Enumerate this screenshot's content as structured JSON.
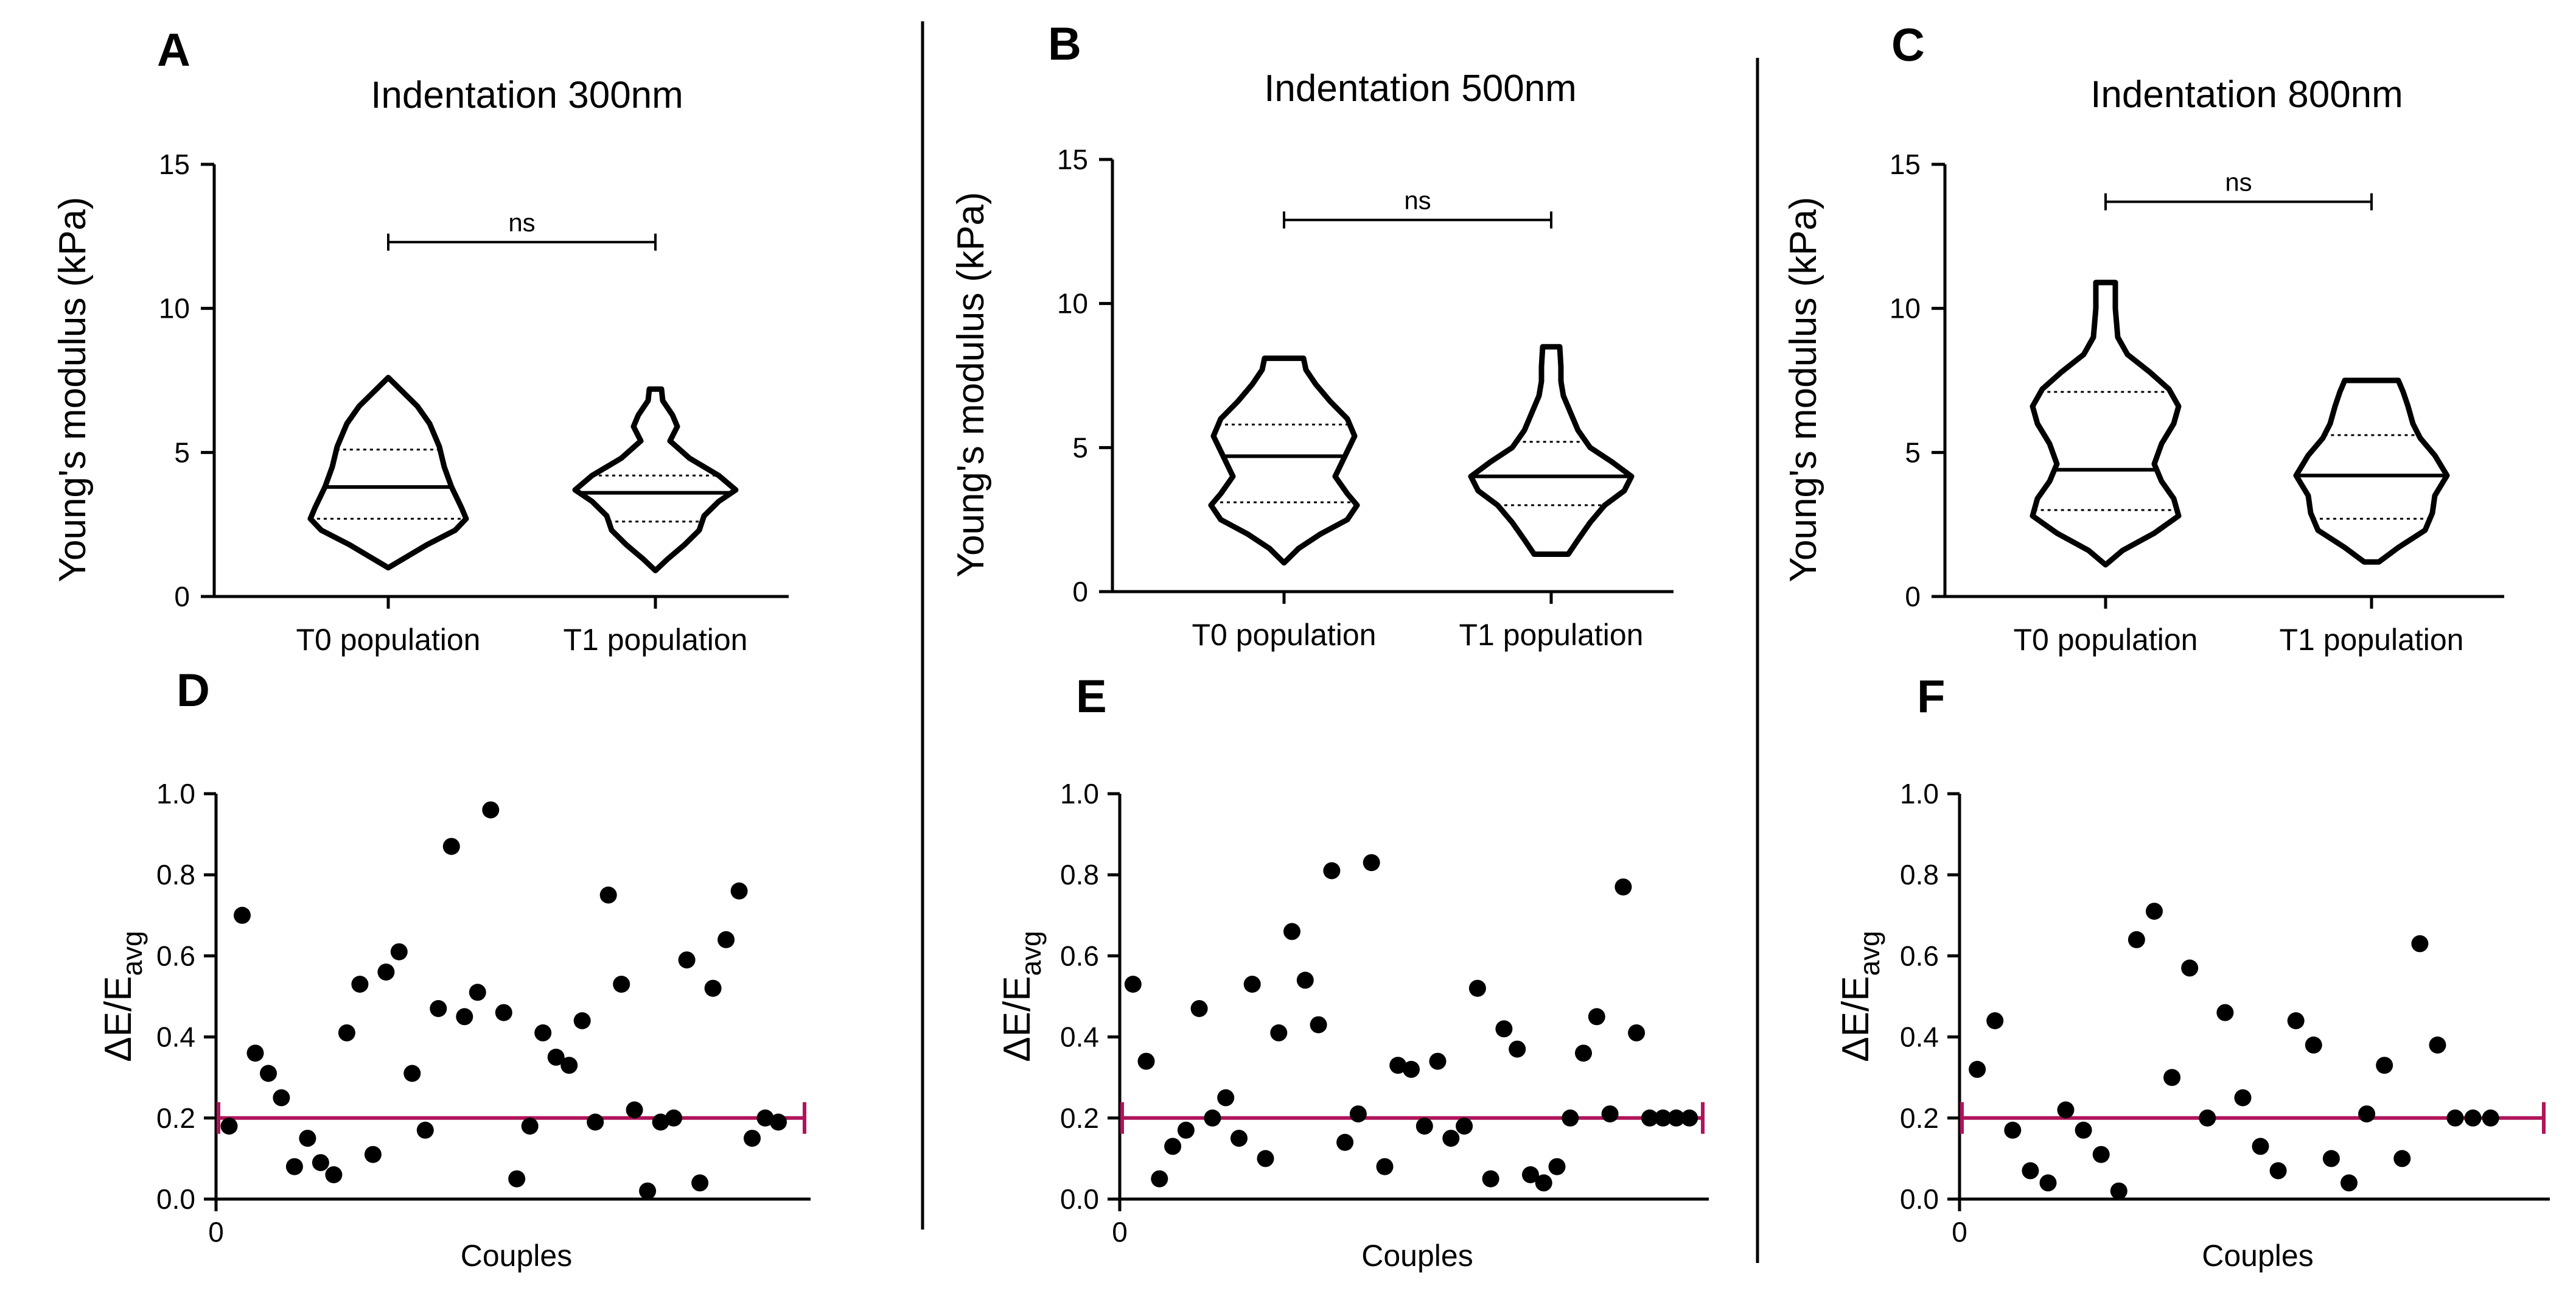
{
  "colors": {
    "threshold_line": "#b0155a",
    "ink": "#000000",
    "background": "#ffffff"
  },
  "chart_data": [
    {
      "panel": "A",
      "type": "violin",
      "title": "Indentation 300nm",
      "ylabel": "Young's modulus (kPa)",
      "ylim": [
        0,
        15
      ],
      "yticks": [
        "0",
        "5",
        "10",
        "15"
      ],
      "categories": [
        "T0 population",
        "T1 population"
      ],
      "significance": "ns",
      "bracket_y": 12.3,
      "series": [
        {
          "name": "T0 population",
          "min": 1.0,
          "max": 7.6,
          "q1": 2.7,
          "median": 3.8,
          "q3": 5.1,
          "profile": [
            [
              1.0,
              0
            ],
            [
              1.3,
              0.12
            ],
            [
              1.8,
              0.32
            ],
            [
              2.3,
              0.55
            ],
            [
              2.7,
              0.64
            ],
            [
              3.1,
              0.6
            ],
            [
              3.8,
              0.52
            ],
            [
              4.5,
              0.46
            ],
            [
              5.2,
              0.42
            ],
            [
              6.0,
              0.34
            ],
            [
              6.6,
              0.24
            ],
            [
              7.1,
              0.12
            ],
            [
              7.6,
              0
            ]
          ]
        },
        {
          "name": "T1 population",
          "min": 0.9,
          "max": 7.2,
          "q1": 2.6,
          "median": 3.6,
          "q3": 4.2,
          "profile": [
            [
              0.9,
              0
            ],
            [
              1.3,
              0.1
            ],
            [
              1.8,
              0.24
            ],
            [
              2.3,
              0.36
            ],
            [
              2.8,
              0.4
            ],
            [
              3.3,
              0.52
            ],
            [
              3.7,
              0.66
            ],
            [
              4.2,
              0.52
            ],
            [
              4.8,
              0.28
            ],
            [
              5.4,
              0.12
            ],
            [
              5.9,
              0.18
            ],
            [
              6.3,
              0.14
            ],
            [
              6.8,
              0.06
            ],
            [
              7.2,
              0.05
            ]
          ]
        }
      ]
    },
    {
      "panel": "B",
      "type": "violin",
      "title": "Indentation 500nm",
      "ylabel": "Young's modulus (kPa)",
      "ylim": [
        0,
        15
      ],
      "yticks": [
        "0",
        "5",
        "10",
        "15"
      ],
      "categories": [
        "T0 population",
        "T1 population"
      ],
      "significance": "ns",
      "bracket_y": 12.9,
      "series": [
        {
          "name": "T0 population",
          "min": 1.0,
          "max": 8.1,
          "q1": 3.1,
          "median": 4.7,
          "q3": 5.8,
          "profile": [
            [
              1.0,
              0
            ],
            [
              1.5,
              0.12
            ],
            [
              2.0,
              0.3
            ],
            [
              2.5,
              0.52
            ],
            [
              3.0,
              0.6
            ],
            [
              3.4,
              0.52
            ],
            [
              4.0,
              0.42
            ],
            [
              4.7,
              0.5
            ],
            [
              5.4,
              0.58
            ],
            [
              6.0,
              0.52
            ],
            [
              6.6,
              0.38
            ],
            [
              7.2,
              0.26
            ],
            [
              7.7,
              0.18
            ],
            [
              8.1,
              0.16
            ]
          ]
        },
        {
          "name": "T1 population",
          "min": 1.3,
          "max": 8.5,
          "q1": 3.0,
          "median": 4.0,
          "q3": 5.2,
          "profile": [
            [
              1.3,
              0.14
            ],
            [
              1.8,
              0.22
            ],
            [
              2.4,
              0.32
            ],
            [
              3.0,
              0.44
            ],
            [
              3.5,
              0.6
            ],
            [
              4.0,
              0.66
            ],
            [
              4.5,
              0.5
            ],
            [
              5.0,
              0.32
            ],
            [
              5.6,
              0.22
            ],
            [
              6.2,
              0.16
            ],
            [
              6.8,
              0.1
            ],
            [
              7.3,
              0.08
            ],
            [
              7.8,
              0.08
            ],
            [
              8.5,
              0.07
            ]
          ]
        }
      ]
    },
    {
      "panel": "C",
      "type": "violin",
      "title": "Indentation 800nm",
      "ylabel": "Young's modulus (kPa)",
      "ylim": [
        0,
        15
      ],
      "yticks": [
        "0",
        "5",
        "10",
        "15"
      ],
      "categories": [
        "T0 population",
        "T1 population"
      ],
      "significance": "ns",
      "bracket_y": 13.7,
      "series": [
        {
          "name": "T0 population",
          "min": 1.1,
          "max": 10.9,
          "q1": 3.0,
          "median": 4.4,
          "q3": 7.1,
          "profile": [
            [
              1.1,
              0
            ],
            [
              1.6,
              0.14
            ],
            [
              2.2,
              0.4
            ],
            [
              2.8,
              0.6
            ],
            [
              3.4,
              0.56
            ],
            [
              4.0,
              0.46
            ],
            [
              4.6,
              0.4
            ],
            [
              5.3,
              0.46
            ],
            [
              6.0,
              0.56
            ],
            [
              6.6,
              0.6
            ],
            [
              7.2,
              0.52
            ],
            [
              7.8,
              0.36
            ],
            [
              8.4,
              0.18
            ],
            [
              9.0,
              0.1
            ],
            [
              10.0,
              0.08
            ],
            [
              10.9,
              0.08
            ]
          ]
        },
        {
          "name": "T1 population",
          "min": 1.2,
          "max": 7.5,
          "q1": 2.7,
          "median": 4.2,
          "q3": 5.6,
          "profile": [
            [
              1.2,
              0.06
            ],
            [
              1.7,
              0.22
            ],
            [
              2.3,
              0.44
            ],
            [
              2.9,
              0.5
            ],
            [
              3.5,
              0.52
            ],
            [
              4.2,
              0.62
            ],
            [
              4.9,
              0.52
            ],
            [
              5.5,
              0.4
            ],
            [
              6.0,
              0.34
            ],
            [
              6.6,
              0.3
            ],
            [
              7.1,
              0.26
            ],
            [
              7.5,
              0.22
            ]
          ]
        }
      ]
    },
    {
      "panel": "D",
      "type": "scatter",
      "ylabel": "ΔE/E",
      "ylabel_sub": "avg",
      "xlabel": "Couples",
      "xtick": "0",
      "xlim": [
        0,
        45
      ],
      "ylim": [
        0,
        1.0
      ],
      "yticks": [
        "0.0",
        "0.2",
        "0.4",
        "0.6",
        "0.8",
        "1.0"
      ],
      "threshold": 0.2,
      "x": [
        1,
        2,
        3,
        4,
        5,
        6,
        7,
        8,
        9,
        10,
        11,
        12,
        13,
        14,
        15,
        16,
        17,
        18,
        19,
        20,
        21,
        22,
        23,
        24,
        25,
        26,
        27,
        28,
        29,
        30,
        31,
        32,
        33,
        34,
        35,
        36,
        37,
        38,
        39,
        40,
        41,
        42,
        43
      ],
      "y": [
        0.18,
        0.7,
        0.36,
        0.31,
        0.25,
        0.08,
        0.15,
        0.09,
        0.06,
        0.41,
        0.53,
        0.11,
        0.56,
        0.61,
        0.31,
        0.17,
        0.47,
        0.87,
        0.45,
        0.51,
        0.96,
        0.46,
        0.05,
        0.18,
        0.41,
        0.35,
        0.33,
        0.44,
        0.19,
        0.75,
        0.53,
        0.22,
        0.02,
        0.19,
        0.2,
        0.59,
        0.04,
        0.52,
        0.64,
        0.76,
        0.15,
        0.2,
        0.19
      ]
    },
    {
      "panel": "E",
      "type": "scatter",
      "ylabel": "ΔE/E",
      "ylabel_sub": "avg",
      "xlabel": "Couples",
      "xtick": "0",
      "xlim": [
        0,
        44
      ],
      "ylim": [
        0,
        1.0
      ],
      "yticks": [
        "0.0",
        "0.2",
        "0.4",
        "0.6",
        "0.8",
        "1.0"
      ],
      "threshold": 0.2,
      "x": [
        1,
        2,
        3,
        4,
        5,
        6,
        7,
        8,
        9,
        10,
        11,
        12,
        13,
        14,
        15,
        16,
        17,
        18,
        19,
        20,
        21,
        22,
        23,
        24,
        25,
        26,
        27,
        28,
        29,
        30,
        31,
        32,
        33,
        34,
        35,
        36,
        37,
        38,
        39,
        40,
        41,
        42,
        43
      ],
      "y": [
        0.53,
        0.34,
        0.05,
        0.13,
        0.17,
        0.47,
        0.2,
        0.25,
        0.15,
        0.53,
        0.1,
        0.41,
        0.66,
        0.54,
        0.43,
        0.81,
        0.14,
        0.21,
        0.83,
        0.08,
        0.33,
        0.32,
        0.18,
        0.34,
        0.15,
        0.18,
        0.52,
        0.05,
        0.42,
        0.37,
        0.06,
        0.04,
        0.08,
        0.2,
        0.36,
        0.45,
        0.21,
        0.77,
        0.41,
        0.2,
        0.2,
        0.2,
        0.2
      ]
    },
    {
      "panel": "F",
      "type": "scatter",
      "ylabel": "ΔE/E",
      "ylabel_sub": "avg",
      "xlabel": "Couples",
      "xtick": "0",
      "xlim": [
        0,
        33
      ],
      "ylim": [
        0,
        1.0
      ],
      "yticks": [
        "0.0",
        "0.2",
        "0.4",
        "0.6",
        "0.8",
        "1.0"
      ],
      "threshold": 0.2,
      "x": [
        1,
        2,
        3,
        4,
        5,
        6,
        7,
        8,
        9,
        10,
        11,
        12,
        13,
        14,
        15,
        16,
        17,
        18,
        19,
        20,
        21,
        22,
        23,
        24,
        25,
        26,
        27,
        28,
        29,
        30
      ],
      "y": [
        0.32,
        0.44,
        0.17,
        0.07,
        0.04,
        0.22,
        0.17,
        0.11,
        0.02,
        0.64,
        0.71,
        0.3,
        0.57,
        0.2,
        0.46,
        0.25,
        0.13,
        0.07,
        0.44,
        0.38,
        0.1,
        0.04,
        0.21,
        0.33,
        0.1,
        0.63,
        0.38,
        0.2,
        0.2,
        0.2
      ]
    }
  ]
}
